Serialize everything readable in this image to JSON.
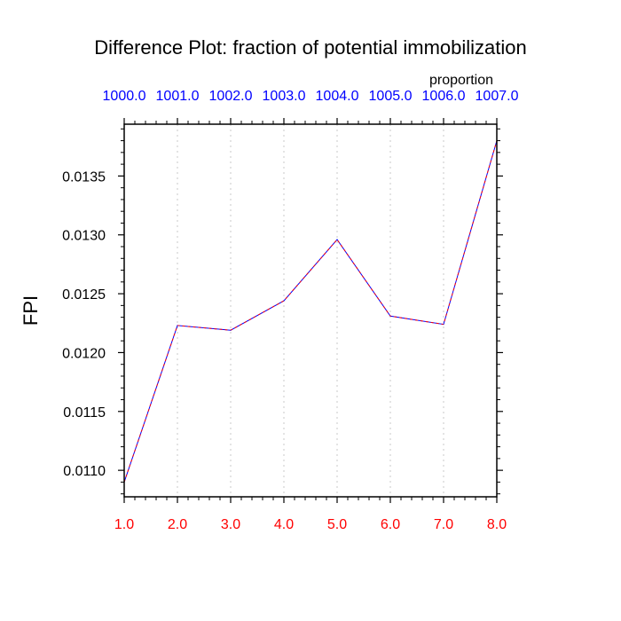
{
  "chart_data": {
    "type": "line",
    "title": "Difference Plot: fraction of potential immobilization",
    "ylabel": "FPI",
    "xlabel": "",
    "top_axis_label": "proportion",
    "x": [
      1.0,
      2.0,
      3.0,
      4.0,
      5.0,
      6.0,
      7.0,
      8.0
    ],
    "x_tick_labels": [
      "1.0",
      "2.0",
      "3.0",
      "4.0",
      "5.0",
      "6.0",
      "7.0",
      "8.0"
    ],
    "top_tick_labels": [
      "1000.0",
      "1001.0",
      "1002.0",
      "1003.0",
      "1004.0",
      "1005.0",
      "1006.0",
      "1007.0"
    ],
    "y_ticks": [
      0.011,
      0.0115,
      0.012,
      0.0125,
      0.013,
      0.0135
    ],
    "y_tick_labels": [
      "0.0110",
      "0.0115",
      "0.0120",
      "0.0125",
      "0.0130",
      "0.0135"
    ],
    "xlim": [
      1.0,
      8.0
    ],
    "ylim": [
      0.010775,
      0.01394
    ],
    "grid": "vertical dotted lines at x ticks",
    "series": [
      {
        "values": [
          0.0109,
          0.01223,
          0.01219,
          0.01244,
          0.01296,
          0.01231,
          0.01224,
          0.0138
        ],
        "color": "#0000ff",
        "dash_color": "#ff0000",
        "style": "dashed"
      }
    ],
    "colors": {
      "x_tick_labels": "#ff0000",
      "top_tick_labels": "#0000ff",
      "grid": "#c8c8c8",
      "axes": "#000000"
    }
  }
}
